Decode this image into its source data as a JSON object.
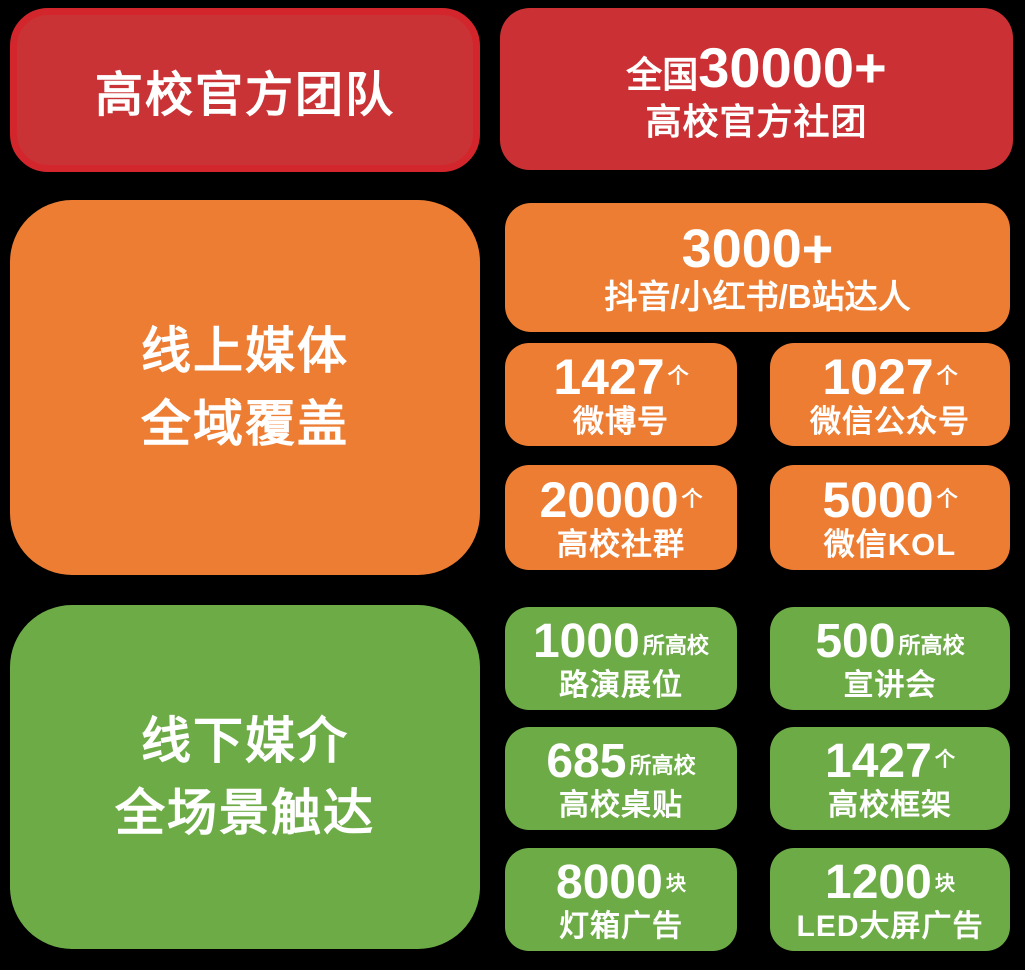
{
  "colors": {
    "background": "#000000",
    "red_fill": "#c93335",
    "red_border": "#d2262c",
    "orange": "#ec7d33",
    "green": "#6dab47",
    "text": "#ffffff"
  },
  "sections": {
    "official": {
      "title": "高校官方团队",
      "stat": {
        "prefix": "全国",
        "number": "30000+",
        "label": "高校官方社团"
      }
    },
    "online": {
      "title_line1": "线上媒体",
      "title_line2": "全域覆盖",
      "hero": {
        "number": "3000+",
        "label": "抖音/小红书/B站达人"
      },
      "stats": [
        {
          "number": "1427",
          "unit": "个",
          "label": "微博号"
        },
        {
          "number": "1027",
          "unit": "个",
          "label": "微信公众号"
        },
        {
          "number": "20000",
          "unit": "个",
          "label": "高校社群"
        },
        {
          "number": "5000",
          "unit": "个",
          "label": "微信KOL"
        }
      ]
    },
    "offline": {
      "title_line1": "线下媒介",
      "title_line2": "全场景触达",
      "stats": [
        {
          "number": "1000",
          "unit": "所高校",
          "label": "路演展位"
        },
        {
          "number": "500",
          "unit": "所高校",
          "label": "宣讲会"
        },
        {
          "number": "685",
          "unit": "所高校",
          "label": "高校桌贴"
        },
        {
          "number": "1427",
          "unit": "个",
          "label": "高校框架"
        },
        {
          "number": "8000",
          "unit": "块",
          "label": "灯箱广告"
        },
        {
          "number": "1200",
          "unit": "块",
          "label": "LED大屏广告"
        }
      ]
    }
  }
}
